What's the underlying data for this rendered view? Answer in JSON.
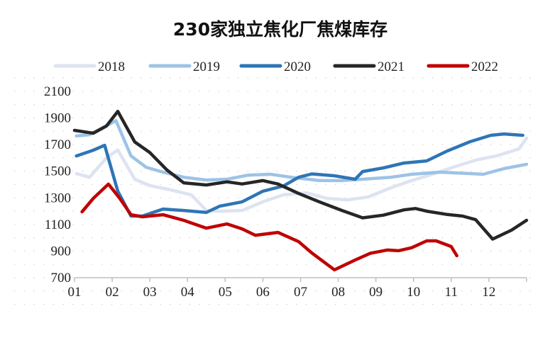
{
  "chart_data": {
    "type": "line",
    "title": "230家独立焦化厂焦煤库存",
    "xlabel": "",
    "ylabel": "",
    "ylim": [
      700,
      2100
    ],
    "yticks": [
      700,
      900,
      1100,
      1300,
      1500,
      1700,
      1900,
      2100
    ],
    "xlim": [
      1,
      13
    ],
    "xticks": [
      "01",
      "02",
      "03",
      "04",
      "05",
      "06",
      "07",
      "08",
      "09",
      "10",
      "11",
      "12"
    ],
    "grid": "dotted",
    "legend": "top",
    "series": [
      {
        "name": "2018",
        "color": "#dde3f0",
        "x": [
          1.05,
          1.4,
          1.85,
          2.15,
          2.6,
          3.0,
          3.55,
          4.1,
          4.5,
          4.85,
          5.45,
          6.0,
          6.55,
          7.15,
          7.7,
          8.25,
          8.8,
          9.4,
          9.95,
          10.55,
          11.1,
          11.65,
          12.2,
          12.8,
          13.0
        ],
        "y": [
          1482,
          1455,
          1600,
          1660,
          1440,
          1392,
          1360,
          1323,
          1205,
          1200,
          1205,
          1270,
          1323,
          1338,
          1296,
          1285,
          1307,
          1376,
          1430,
          1482,
          1535,
          1583,
          1615,
          1668,
          1750
        ]
      },
      {
        "name": "2019",
        "color": "#9dc3e6",
        "x": [
          1.05,
          1.4,
          2.1,
          2.5,
          2.9,
          3.35,
          3.9,
          4.5,
          5.05,
          5.6,
          6.2,
          6.75,
          7.5,
          8.1,
          8.65,
          9.4,
          9.95,
          10.7,
          11.3,
          11.85,
          12.4,
          13.0
        ],
        "y": [
          1765,
          1775,
          1880,
          1615,
          1530,
          1493,
          1455,
          1434,
          1440,
          1470,
          1477,
          1455,
          1430,
          1430,
          1440,
          1455,
          1477,
          1493,
          1485,
          1477,
          1520,
          1552
        ]
      },
      {
        "name": "2020",
        "color": "#2e75b6",
        "x": [
          1.05,
          1.5,
          1.8,
          2.15,
          2.5,
          2.8,
          3.35,
          3.9,
          4.5,
          4.85,
          5.45,
          6.0,
          6.55,
          6.95,
          7.3,
          7.9,
          8.45,
          8.65,
          9.2,
          9.75,
          10.35,
          10.9,
          11.5,
          12.05,
          12.4,
          12.9
        ],
        "y": [
          1615,
          1658,
          1695,
          1350,
          1163,
          1163,
          1216,
          1205,
          1190,
          1237,
          1270,
          1350,
          1390,
          1455,
          1480,
          1466,
          1440,
          1498,
          1525,
          1562,
          1578,
          1653,
          1722,
          1770,
          1780,
          1770
        ]
      },
      {
        "name": "2021",
        "color": "#262626",
        "x": [
          1.0,
          1.5,
          1.85,
          2.15,
          2.6,
          3.0,
          3.45,
          3.9,
          4.5,
          5.05,
          5.45,
          6.0,
          6.4,
          6.95,
          7.5,
          8.1,
          8.65,
          9.2,
          9.75,
          10.05,
          10.35,
          10.9,
          11.3,
          11.65,
          12.1,
          12.6,
          13.0
        ],
        "y": [
          1807,
          1786,
          1840,
          1950,
          1720,
          1640,
          1510,
          1413,
          1397,
          1420,
          1404,
          1430,
          1404,
          1333,
          1270,
          1205,
          1150,
          1170,
          1210,
          1220,
          1200,
          1175,
          1163,
          1136,
          990,
          1057,
          1131
        ]
      },
      {
        "name": "2022",
        "color": "#c00000",
        "x": [
          1.2,
          1.5,
          1.9,
          2.2,
          2.5,
          2.8,
          3.35,
          3.9,
          4.5,
          5.05,
          5.45,
          5.8,
          6.4,
          6.95,
          7.3,
          7.9,
          8.45,
          8.85,
          9.3,
          9.6,
          9.95,
          10.35,
          10.6,
          11.0,
          11.15
        ],
        "y": [
          1195,
          1296,
          1403,
          1296,
          1173,
          1158,
          1173,
          1131,
          1072,
          1104,
          1067,
          1019,
          1040,
          971,
          886,
          759,
          833,
          883,
          908,
          903,
          925,
          977,
          977,
          934,
          865
        ]
      }
    ]
  }
}
